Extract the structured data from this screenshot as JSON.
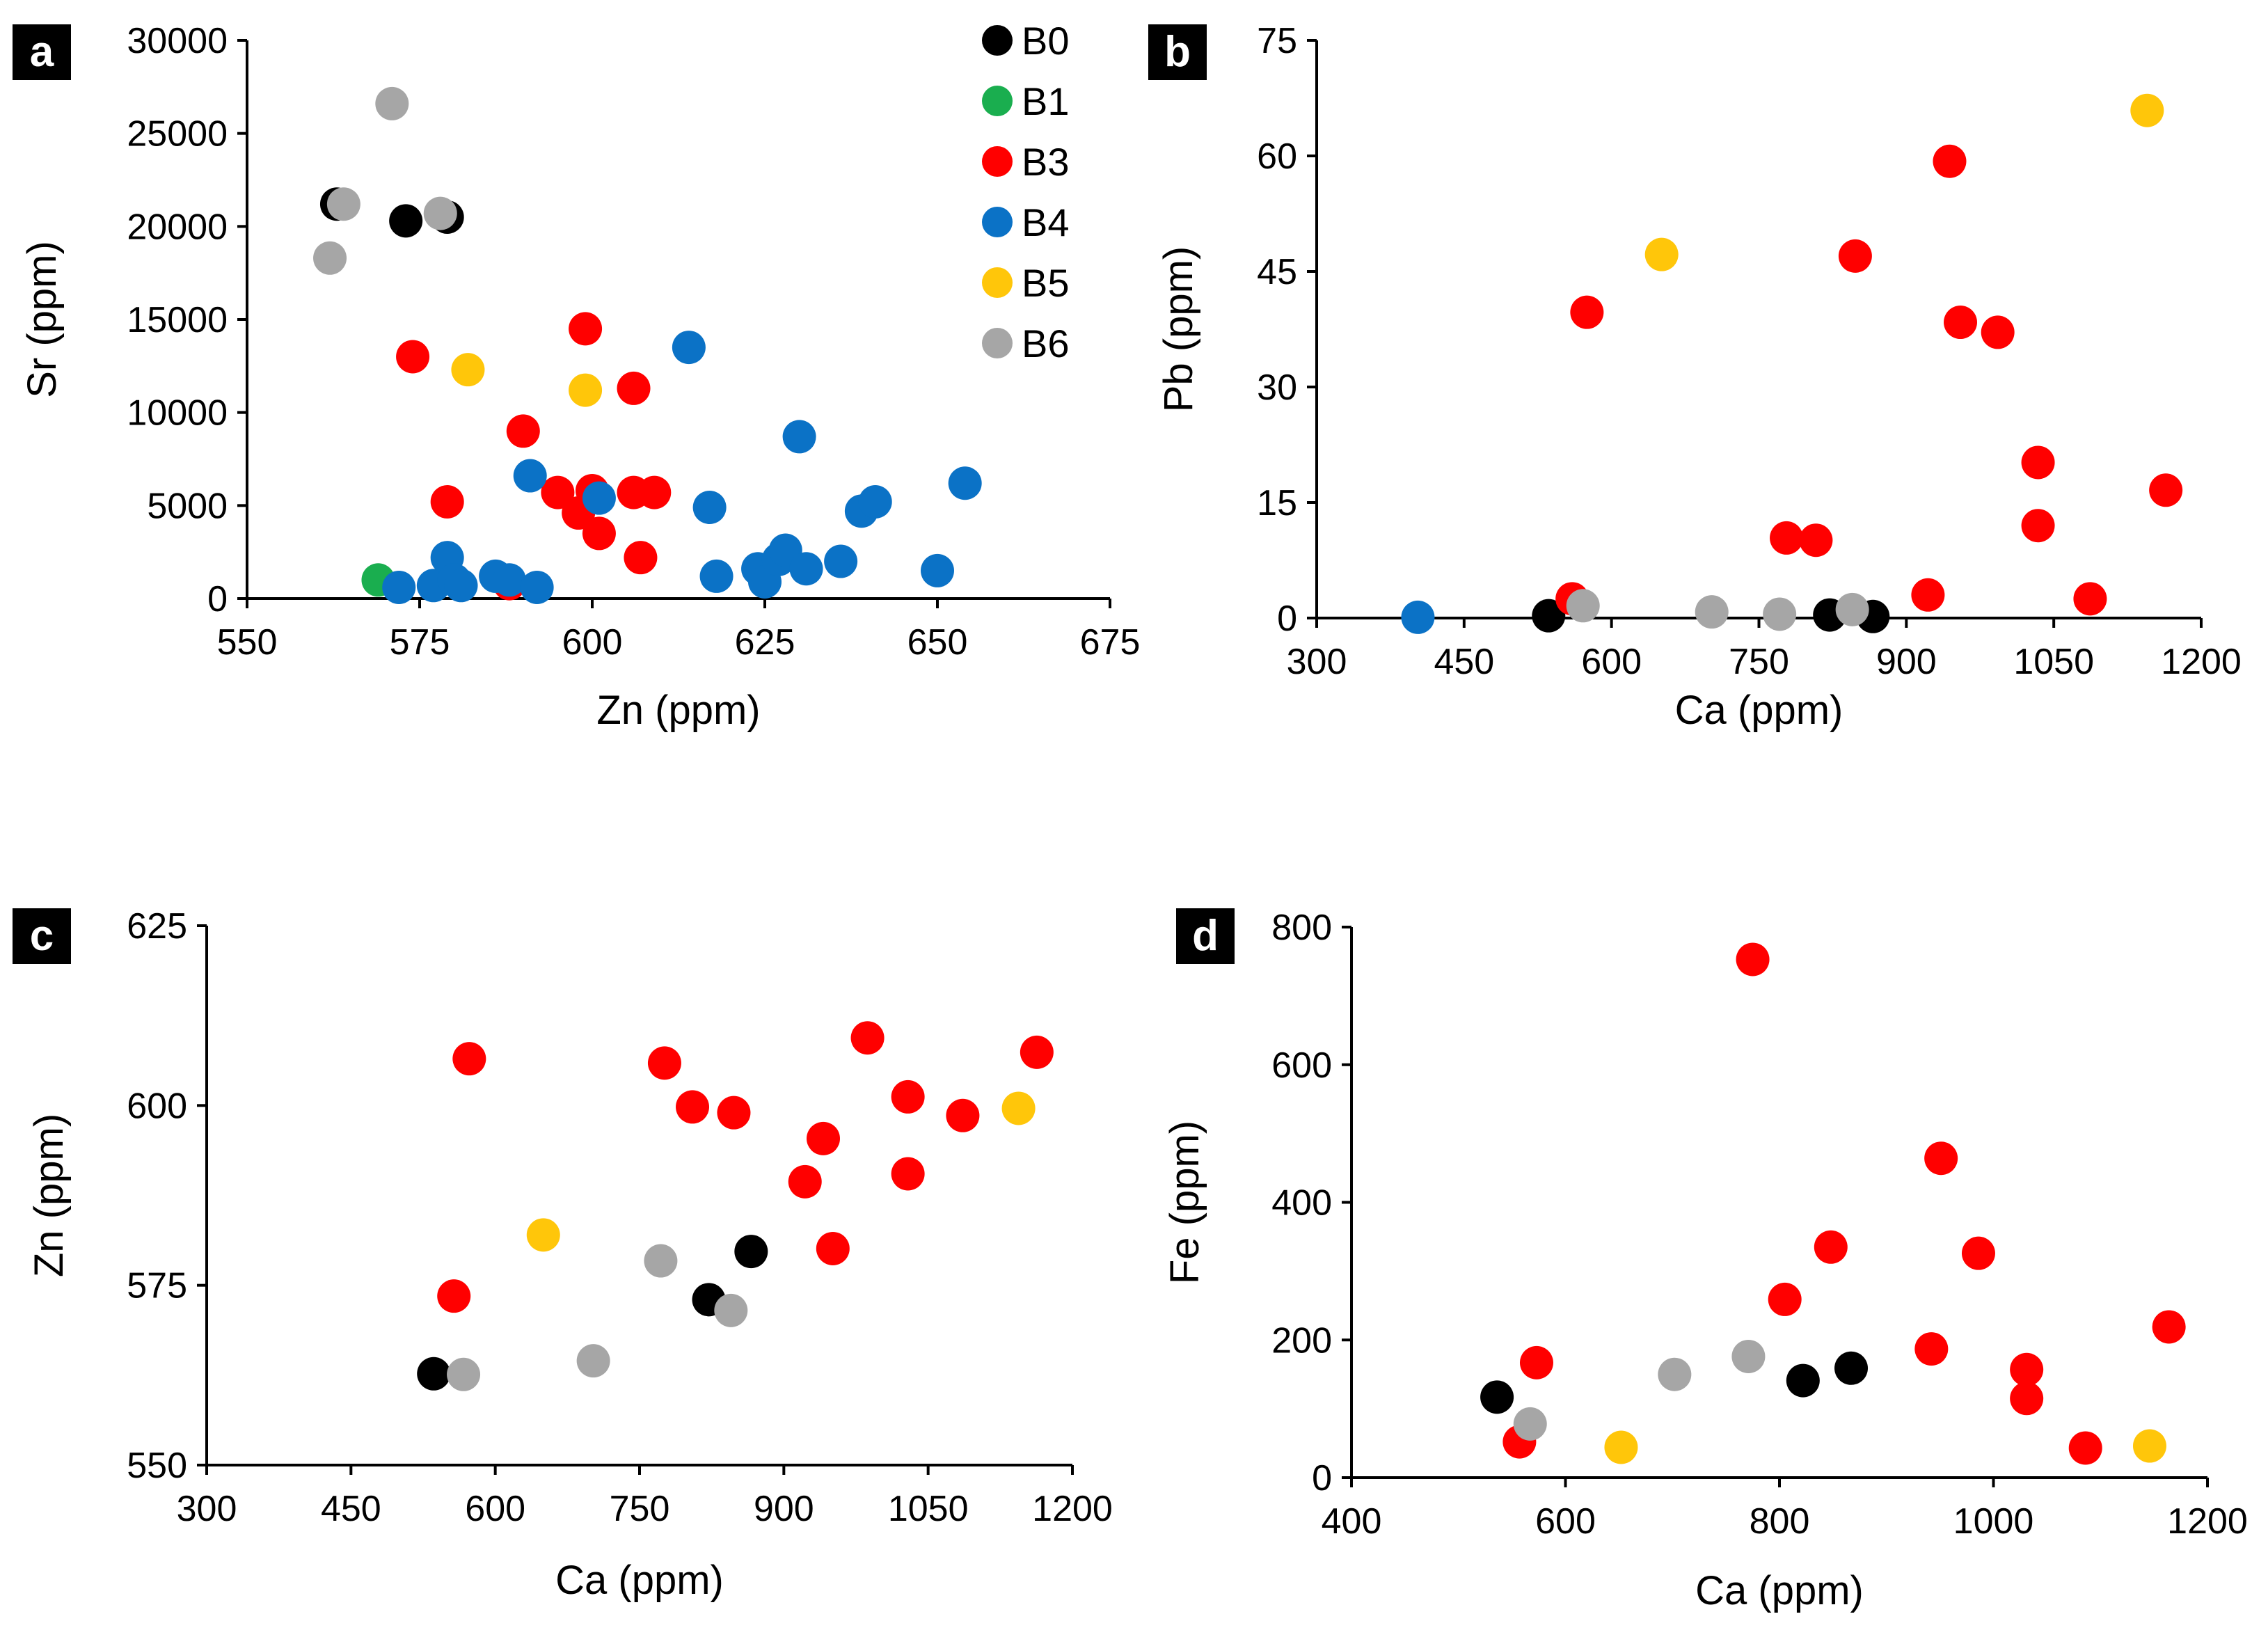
{
  "colors": {
    "B0": "#000000",
    "B1": "#1aae4f",
    "B3": "#ff0000",
    "B4": "#0b72c6",
    "B5": "#ffc60a",
    "B6": "#a6a6a6"
  },
  "legend": [
    {
      "key": "B0",
      "label": "B0"
    },
    {
      "key": "B1",
      "label": "B1"
    },
    {
      "key": "B3",
      "label": "B3"
    },
    {
      "key": "B4",
      "label": "B4"
    },
    {
      "key": "B5",
      "label": "B5"
    },
    {
      "key": "B6",
      "label": "B6"
    }
  ],
  "chart_data": [
    {
      "panel": "a",
      "type": "scatter",
      "xlabel": "Zn (ppm)",
      "ylabel": "Sr (ppm)",
      "xlim": [
        550,
        675
      ],
      "ylim": [
        0,
        30000
      ],
      "xticks": [
        550,
        575,
        600,
        625,
        650,
        675
      ],
      "yticks": [
        0,
        5000,
        10000,
        15000,
        20000,
        25000,
        30000
      ],
      "series": [
        {
          "name": "B0",
          "points": [
            [
              563,
              21200
            ],
            [
              573,
              20300
            ],
            [
              579,
              20500
            ]
          ]
        },
        {
          "name": "B1",
          "points": [
            [
              569,
              1000
            ]
          ]
        },
        {
          "name": "B3",
          "points": [
            [
              574,
              13000
            ],
            [
              579,
              5200
            ],
            [
              588,
              800
            ],
            [
              590,
              9000
            ],
            [
              595,
              5700
            ],
            [
              598,
              4600
            ],
            [
              599,
              14500
            ],
            [
              600,
              5800
            ],
            [
              601,
              3500
            ],
            [
              606,
              5700
            ],
            [
              606,
              11300
            ],
            [
              607,
              2200
            ],
            [
              609,
              5700
            ]
          ]
        },
        {
          "name": "B4",
          "points": [
            [
              572,
              600
            ],
            [
              577,
              700
            ],
            [
              579,
              2200
            ],
            [
              580,
              1000
            ],
            [
              581,
              700
            ],
            [
              586,
              1200
            ],
            [
              588,
              1000
            ],
            [
              591,
              6600
            ],
            [
              592,
              600
            ],
            [
              601,
              5400
            ],
            [
              614,
              13500
            ],
            [
              617,
              4900
            ],
            [
              618,
              1200
            ],
            [
              624,
              1600
            ],
            [
              625,
              900
            ],
            [
              627,
              2100
            ],
            [
              628,
              2600
            ],
            [
              630,
              8700
            ],
            [
              631,
              1600
            ],
            [
              636,
              2000
            ],
            [
              639,
              4700
            ],
            [
              641,
              5200
            ],
            [
              650,
              1500
            ],
            [
              654,
              6200
            ]
          ]
        },
        {
          "name": "B5",
          "points": [
            [
              582,
              12300
            ],
            [
              599,
              11200
            ]
          ]
        },
        {
          "name": "B6",
          "points": [
            [
              562,
              18300
            ],
            [
              564,
              21200
            ],
            [
              571,
              26600
            ],
            [
              578,
              20700
            ]
          ]
        }
      ]
    },
    {
      "panel": "b",
      "type": "scatter",
      "xlabel": "Ca (ppm)",
      "ylabel": "Pb (ppm)",
      "xlim": [
        300,
        1200
      ],
      "ylim": [
        0,
        75
      ],
      "xticks": [
        300,
        450,
        600,
        750,
        900,
        1050,
        1200
      ],
      "yticks": [
        0,
        15,
        30,
        45,
        60,
        75
      ],
      "series": [
        {
          "name": "B0",
          "points": [
            [
              536,
              0.3
            ],
            [
              822,
              0.4
            ],
            [
              866,
              0.2
            ]
          ]
        },
        {
          "name": "B3",
          "points": [
            [
              560,
              2.5
            ],
            [
              575,
              39.7
            ],
            [
              778,
              10.4
            ],
            [
              808,
              10.1
            ],
            [
              848,
              47
            ],
            [
              922,
              3
            ],
            [
              944,
              59.3
            ],
            [
              955,
              38.4
            ],
            [
              993,
              37.1
            ],
            [
              1034,
              20.2
            ],
            [
              1034,
              12
            ],
            [
              1087,
              2.5
            ],
            [
              1164,
              16.6
            ]
          ]
        },
        {
          "name": "B4",
          "points": [
            [
              403,
              0.1
            ]
          ]
        },
        {
          "name": "B5",
          "points": [
            [
              651,
              47.2
            ],
            [
              1145,
              65.9
            ]
          ]
        },
        {
          "name": "B6",
          "points": [
            [
              571,
              1.6
            ],
            [
              702,
              0.8
            ],
            [
              771,
              0.5
            ],
            [
              845,
              1.1
            ]
          ]
        }
      ]
    },
    {
      "panel": "c",
      "type": "scatter",
      "xlabel": "Ca (ppm)",
      "ylabel": "Zn (ppm)",
      "xlim": [
        300,
        1200
      ],
      "ylim": [
        550,
        625
      ],
      "xticks": [
        300,
        450,
        600,
        750,
        900,
        1050,
        1200
      ],
      "yticks": [
        550,
        575,
        600,
        625
      ],
      "series": [
        {
          "name": "B0",
          "points": [
            [
              536,
              562.7
            ],
            [
              822,
              573
            ],
            [
              866,
              579.7
            ]
          ]
        },
        {
          "name": "B3",
          "points": [
            [
              557,
              573.5
            ],
            [
              573,
              606.5
            ],
            [
              776,
              605.9
            ],
            [
              805,
              599.8
            ],
            [
              848,
              599
            ],
            [
              922,
              589.4
            ],
            [
              941,
              595.4
            ],
            [
              951,
              580.1
            ],
            [
              987,
              609.4
            ],
            [
              1029,
              601.2
            ],
            [
              1029,
              590.5
            ],
            [
              1086,
              598.6
            ],
            [
              1163,
              607.4
            ]
          ]
        },
        {
          "name": "B5",
          "points": [
            [
              650,
              582
            ],
            [
              1144,
              599.6
            ]
          ]
        },
        {
          "name": "B6",
          "points": [
            [
              567,
              562.6
            ],
            [
              702,
              564.5
            ],
            [
              772,
              578.4
            ],
            [
              845,
              571.5
            ]
          ]
        }
      ]
    },
    {
      "panel": "d",
      "type": "scatter",
      "xlabel": "Ca (ppm)",
      "ylabel": "Fe (ppm)",
      "xlim": [
        400,
        1200
      ],
      "ylim": [
        0,
        800
      ],
      "xticks": [
        400,
        600,
        800,
        1000,
        1200
      ],
      "yticks": [
        0,
        200,
        400,
        600,
        800
      ],
      "series": [
        {
          "name": "B0",
          "points": [
            [
              536,
              117
            ],
            [
              822,
              141
            ],
            [
              867,
              159
            ]
          ]
        },
        {
          "name": "B3",
          "points": [
            [
              557,
              52
            ],
            [
              573,
              167
            ],
            [
              775,
              753
            ],
            [
              805,
              259
            ],
            [
              848,
              335
            ],
            [
              942,
              187
            ],
            [
              951,
              464
            ],
            [
              986,
              326
            ],
            [
              1031,
              157
            ],
            [
              1031,
              115
            ],
            [
              1086,
              43
            ],
            [
              1164,
              219
            ]
          ]
        },
        {
          "name": "B5",
          "points": [
            [
              652,
              44
            ],
            [
              1146,
              46
            ]
          ]
        },
        {
          "name": "B6",
          "points": [
            [
              567,
              78
            ],
            [
              702,
              150
            ],
            [
              771,
              176
            ]
          ]
        }
      ]
    }
  ]
}
